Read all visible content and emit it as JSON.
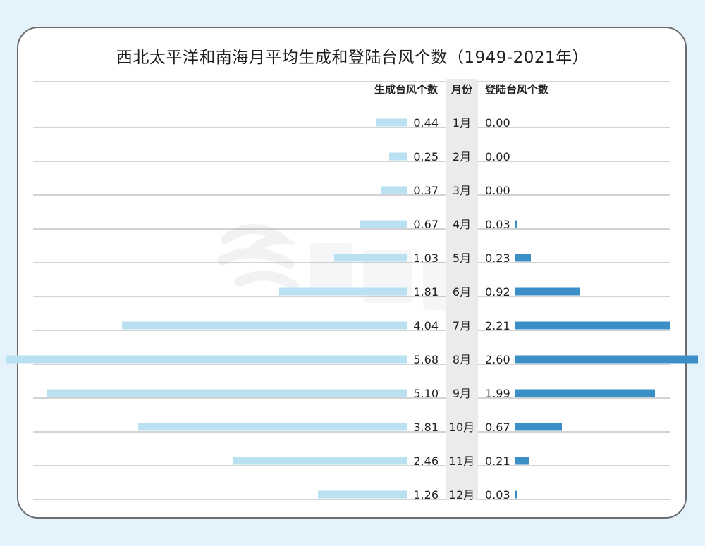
{
  "title": "西北太平洋和南海月平均生成和登陆台风个数（1949-2021年）",
  "chart_data": {
    "type": "bar",
    "title": "西北太平洋和南海月平均生成和登陆台风个数（1949-2021年）",
    "column_headers": {
      "generated": "生成台风个数",
      "month": "月份",
      "landfall": "登陆台风个数"
    },
    "categories": [
      "1月",
      "2月",
      "3月",
      "4月",
      "5月",
      "6月",
      "7月",
      "8月",
      "9月",
      "10月",
      "11月",
      "12月"
    ],
    "series": [
      {
        "name": "生成台风个数",
        "values": [
          0.44,
          0.25,
          0.37,
          0.67,
          1.03,
          1.81,
          4.04,
          5.68,
          5.1,
          3.81,
          2.46,
          1.26
        ],
        "labels": [
          "0.44",
          "0.25",
          "0.37",
          "0.67",
          "1.03",
          "1.81",
          "4.04",
          "5.68",
          "5.10",
          "3.81",
          "2.46",
          "1.26"
        ],
        "color": "#b9e1f2"
      },
      {
        "name": "登陆台风个数",
        "values": [
          0.0,
          0.0,
          0.0,
          0.03,
          0.23,
          0.92,
          2.21,
          2.6,
          1.99,
          0.67,
          0.21,
          0.03
        ],
        "labels": [
          "0.00",
          "0.00",
          "0.00",
          "0.03",
          "0.23",
          "0.92",
          "2.21",
          "2.60",
          "1.99",
          "0.67",
          "0.21",
          "0.03"
        ],
        "color": "#3b8fc6"
      }
    ],
    "grid": true,
    "orientation": "horizontal-diverging"
  }
}
